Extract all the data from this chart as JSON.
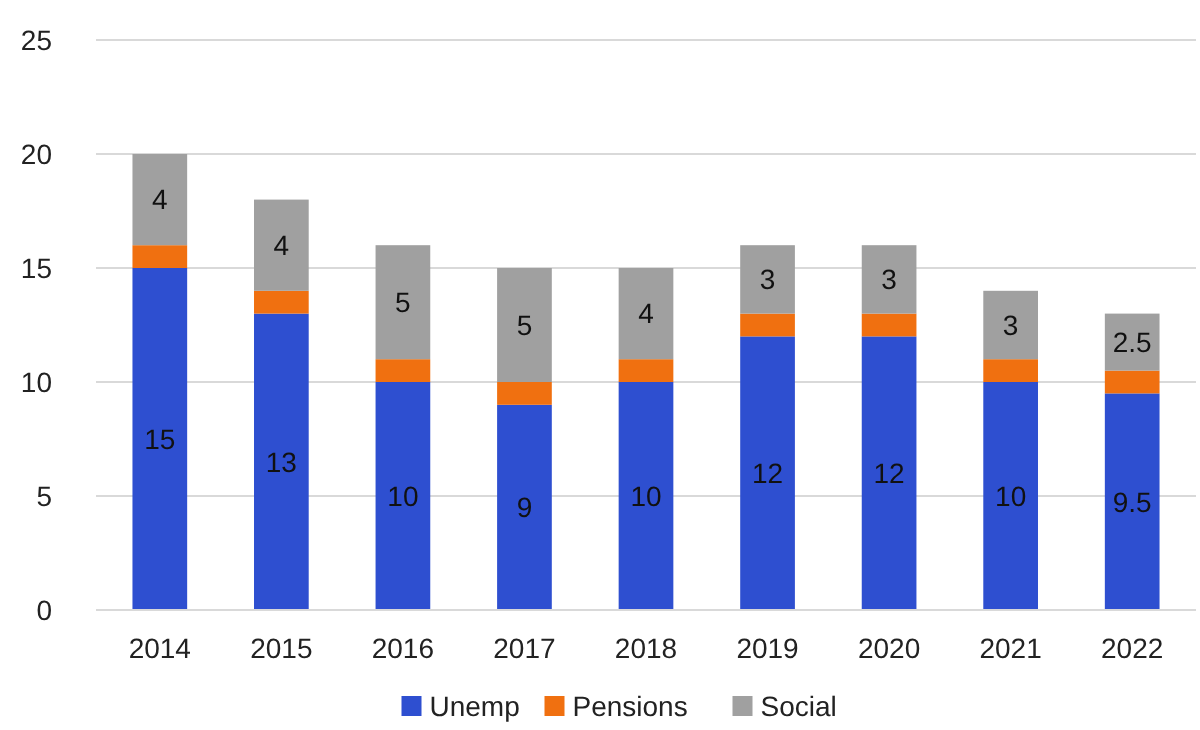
{
  "chart_data": {
    "type": "bar",
    "stacked": true,
    "categories": [
      "2014",
      "2015",
      "2016",
      "2017",
      "2018",
      "2019",
      "2020",
      "2021",
      "2022"
    ],
    "series": [
      {
        "name": "Unemp",
        "color": "#2e4fd0",
        "values": [
          15,
          13,
          10,
          9,
          10,
          12,
          12,
          10,
          9.5
        ],
        "value_labels": [
          "15",
          "13",
          "10",
          "9",
          "10",
          "12",
          "12",
          "10",
          "9.5"
        ]
      },
      {
        "name": "Pensions",
        "color": "#f07010",
        "values": [
          1,
          1,
          1,
          1,
          1,
          1,
          1,
          1,
          1
        ]
      },
      {
        "name": "Social",
        "color": "#a0a0a0",
        "values": [
          4,
          4,
          5,
          5,
          4,
          3,
          3,
          3,
          2.5
        ],
        "value_labels": [
          "4",
          "4",
          "5",
          "5",
          "4",
          "3",
          "3",
          "3",
          "2.5"
        ]
      }
    ],
    "ylim": [
      0,
      25
    ],
    "yticks": [
      0,
      5,
      10,
      15,
      20,
      25
    ],
    "grid": "y",
    "legend": "bottom"
  }
}
